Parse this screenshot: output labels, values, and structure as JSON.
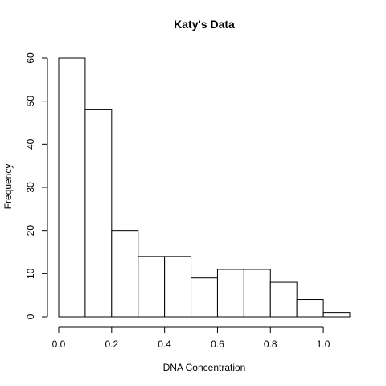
{
  "chart_data": {
    "type": "bar",
    "subtype": "histogram",
    "title": "Katy's Data",
    "xlabel": "DNA Concentration",
    "ylabel": "Frequency",
    "bins": [
      {
        "from": 0.0,
        "to": 0.1,
        "count": 60
      },
      {
        "from": 0.1,
        "to": 0.2,
        "count": 48
      },
      {
        "from": 0.2,
        "to": 0.3,
        "count": 20
      },
      {
        "from": 0.3,
        "to": 0.4,
        "count": 14
      },
      {
        "from": 0.4,
        "to": 0.5,
        "count": 14
      },
      {
        "from": 0.5,
        "to": 0.6,
        "count": 9
      },
      {
        "from": 0.6,
        "to": 0.7,
        "count": 11
      },
      {
        "from": 0.7,
        "to": 0.8,
        "count": 11
      },
      {
        "from": 0.8,
        "to": 0.9,
        "count": 8
      },
      {
        "from": 0.9,
        "to": 1.0,
        "count": 4
      },
      {
        "from": 1.0,
        "to": 1.1,
        "count": 1
      }
    ],
    "xticks": [
      "0.0",
      "0.2",
      "0.4",
      "0.6",
      "0.8",
      "1.0"
    ],
    "xtick_values": [
      0.0,
      0.2,
      0.4,
      0.6,
      0.8,
      1.0
    ],
    "yticks": [
      "0",
      "10",
      "20",
      "30",
      "40",
      "50",
      "60"
    ],
    "ytick_values": [
      0,
      10,
      20,
      30,
      40,
      50,
      60
    ],
    "xlim": [
      0.0,
      1.1
    ],
    "ylim": [
      0,
      60
    ],
    "grid": false,
    "bar_fill": "#ffffff",
    "bar_stroke": "#000000"
  }
}
